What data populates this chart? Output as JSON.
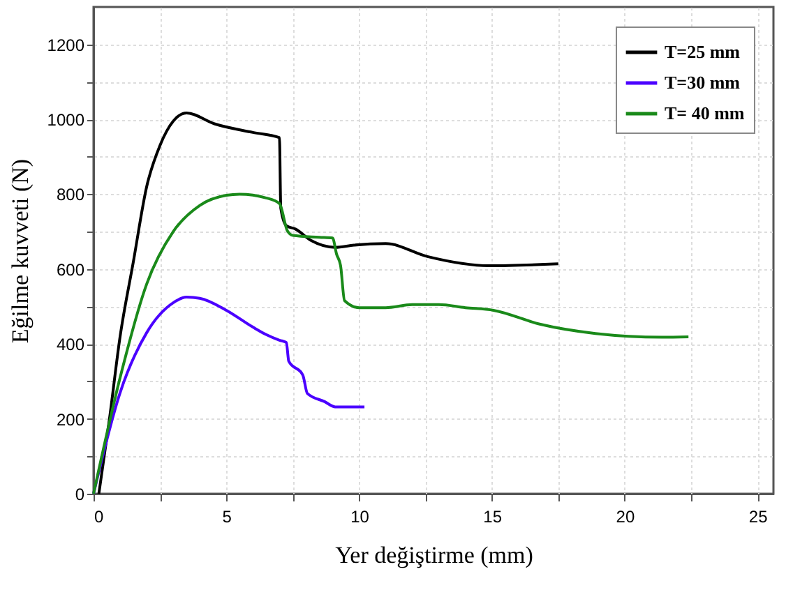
{
  "chart_data": {
    "type": "line",
    "xlabel": "Yer değiştirme (mm)",
    "ylabel": "Eğilme kuvveti (N)",
    "xlim": [
      0,
      25.6
    ],
    "ylim": [
      0,
      1300
    ],
    "xticks": [
      0,
      {
        "value": 2.5,
        "label": null
      },
      5,
      {
        "value": 7.5,
        "label": null
      },
      10,
      {
        "value": 12.5,
        "label": null
      },
      15,
      {
        "value": 17.5,
        "label": null
      },
      20,
      {
        "value": 22.5,
        "label": null
      },
      25
    ],
    "yticks": [
      0,
      {
        "value": 100,
        "label": null
      },
      200,
      {
        "value": 300,
        "label": null
      },
      400,
      {
        "value": 500,
        "label": null
      },
      600,
      {
        "value": 700,
        "label": null
      },
      800,
      {
        "value": 900,
        "label": null
      },
      1000,
      {
        "value": 1100,
        "label": null
      },
      1200
    ],
    "grid": true,
    "legend": "top right",
    "line_style": "solid",
    "marker": "none",
    "series": [
      {
        "name": "T=25 mm",
        "color": "#000000",
        "x": [
          0.2,
          0.6,
          1.0,
          1.5,
          2.0,
          2.5,
          3.0,
          3.5,
          4.55,
          6.0,
          7.0,
          7.05,
          7.26,
          7.6,
          8.2,
          9.1,
          9.8,
          11.0,
          12.6,
          14.9,
          17.5
        ],
        "values": [
          0,
          200,
          420,
          620,
          820,
          930,
          995,
          1017,
          988,
          965,
          951,
          763,
          716,
          707,
          676,
          658,
          664,
          668,
          633,
          609,
          614
        ]
      },
      {
        "name": "T=30 mm",
        "color": "#4b00ff",
        "x": [
          0,
          1,
          2,
          3,
          3.5,
          4,
          5,
          6,
          6.5,
          7.0,
          7.26,
          7.35,
          7.88,
          8.05,
          8.7,
          9.1,
          10.2
        ],
        "values": [
          0,
          270,
          430,
          510,
          525,
          522,
          490,
          445,
          425,
          410,
          404,
          354,
          317,
          268,
          246,
          232,
          232
        ]
      },
      {
        "name": "T= 40 mm",
        "color": "#1a8a1a",
        "x": [
          0,
          1,
          2,
          3,
          4,
          5,
          5.5,
          6.5,
          7.0,
          7.3,
          7.5,
          8.5,
          9.0,
          9.15,
          9.3,
          9.45,
          10,
          11,
          12,
          13,
          14,
          15.06,
          16.8,
          18.9,
          21.4,
          22.4
        ],
        "values": [
          0,
          310,
          560,
          700,
          770,
          797,
          800,
          790,
          775,
          702,
          690,
          685,
          683,
          640,
          610,
          516,
          497,
          497,
          505,
          505,
          497,
          490,
          453,
          428,
          418,
          419
        ]
      }
    ]
  }
}
